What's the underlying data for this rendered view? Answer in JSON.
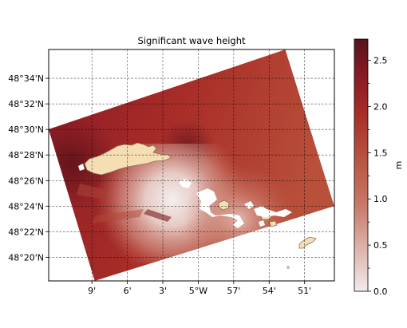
{
  "chart_data": {
    "type": "heatmap",
    "title": "Significant wave height",
    "xlabel": "",
    "ylabel": "",
    "x_ticks": [
      {
        "value": -5.15,
        "label": "9'"
      },
      {
        "value": -5.1,
        "label": "6'"
      },
      {
        "value": -5.05,
        "label": "3'"
      },
      {
        "value": -5.0,
        "label": "5°W"
      },
      {
        "value": -4.95,
        "label": "57'"
      },
      {
        "value": -4.9,
        "label": "54'"
      },
      {
        "value": -4.85,
        "label": "51'"
      }
    ],
    "y_ticks": [
      {
        "value": 48.5667,
        "label": "48°34'N"
      },
      {
        "value": 48.5333,
        "label": "48°32'N"
      },
      {
        "value": 48.5,
        "label": "48°30'N"
      },
      {
        "value": 48.4667,
        "label": "48°28'N"
      },
      {
        "value": 48.4333,
        "label": "48°26'N"
      },
      {
        "value": 48.4,
        "label": "48°24'N"
      },
      {
        "value": 48.3667,
        "label": "48°22'N"
      },
      {
        "value": 48.3333,
        "label": "48°20'N"
      }
    ],
    "xlim": [
      -5.211,
      -4.808
    ],
    "ylim": [
      48.3025,
      48.6042
    ],
    "grid": true,
    "colorbar": {
      "label": "m",
      "range": [
        0.0,
        2.73
      ],
      "ticks": [
        {
          "value": 0.0,
          "label": "0.0"
        },
        {
          "value": 0.5,
          "label": "0.5"
        },
        {
          "value": 1.0,
          "label": "1.0"
        },
        {
          "value": 1.5,
          "label": "1.5"
        },
        {
          "value": 2.0,
          "label": "2.0"
        },
        {
          "value": 2.5,
          "label": "2.5"
        }
      ],
      "colors": [
        "#f2ebea",
        "#dcb3aa",
        "#c9796a",
        "#b85540",
        "#a92e2a",
        "#861a22",
        "#55151a"
      ]
    },
    "domain_corners": [
      {
        "lon": -5.2112,
        "lat": 48.5003
      },
      {
        "lon": -4.8772,
        "lat": 48.6042
      },
      {
        "lon": -4.8081,
        "lat": 48.4
      },
      {
        "lon": -5.1462,
        "lat": 48.3025
      }
    ],
    "land_color": "#f5deb3",
    "land_edge_color": "#8b7355"
  }
}
